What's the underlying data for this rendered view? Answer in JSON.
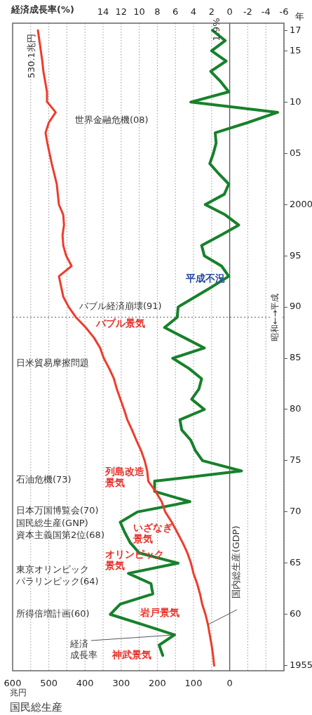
{
  "chart_data": {
    "type": "line",
    "orientation": "horizontal",
    "xlabel": "国民総生産",
    "x2label": "経済成長率(%)",
    "ylabel": "年",
    "x": [
      1955,
      1956,
      1957,
      1958,
      1959,
      1960,
      1961,
      1962,
      1963,
      1964,
      1965,
      1966,
      1967,
      1968,
      1969,
      1970,
      1971,
      1972,
      1973,
      1974,
      1975,
      1976,
      1977,
      1978,
      1979,
      1980,
      1981,
      1982,
      1983,
      1984,
      1985,
      1986,
      1987,
      1988,
      1989,
      1990,
      1991,
      1992,
      1993,
      1994,
      1995,
      1996,
      1997,
      1998,
      1999,
      2000,
      2001,
      2002,
      2003,
      2004,
      2005,
      2006,
      2007,
      2008,
      2009,
      2010,
      2011,
      2012,
      2013,
      2014,
      2015,
      2016,
      2017
    ],
    "ylim": [
      1954.5,
      2017.7
    ],
    "yticks": [
      1955,
      {
        "value": 1960,
        "label": "60"
      },
      {
        "value": 1965,
        "label": "65"
      },
      {
        "value": 1970,
        "label": "70"
      },
      {
        "value": 1975,
        "label": "75"
      },
      {
        "value": 1980,
        "label": "80"
      },
      {
        "value": 1985,
        "label": "85"
      },
      {
        "value": 1990,
        "label": "90"
      },
      {
        "value": 1995,
        "label": "95"
      },
      2000,
      {
        "value": 2005,
        "label": "05"
      },
      {
        "value": 2010,
        "label": "10"
      },
      {
        "value": 2015,
        "label": "15"
      },
      {
        "value": 2017,
        "label": "17"
      }
    ],
    "xlim": [
      600,
      -150
    ],
    "xticks": [
      0,
      100,
      200,
      300,
      400,
      500,
      600
    ],
    "x2lim": [
      24,
      -6
    ],
    "x2ticks": [
      -6,
      -4,
      -2,
      0,
      2,
      4,
      6,
      8,
      10,
      12,
      14,
      {
        "value": 16,
        "label": null
      },
      {
        "value": 18,
        "label": null
      },
      {
        "value": 20,
        "label": null
      },
      {
        "value": 22,
        "label": null
      }
    ],
    "grid": "x",
    "marker": "none",
    "line_style": "solid",
    "series": [
      {
        "name": "国内総生産(GDP)",
        "color": "#ef3b2c",
        "values": [
          43,
          46,
          50,
          55,
          60,
          67,
          76,
          82,
          90,
          100,
          107,
          117,
          130,
          145,
          160,
          178,
          188,
          205,
          225,
          228,
          235,
          245,
          258,
          270,
          283,
          292,
          302,
          312,
          320,
          333,
          348,
          358,
          375,
          398,
          425,
          445,
          460,
          466,
          472,
          437,
          452,
          460,
          462,
          458,
          460,
          472,
          475,
          478,
          485,
          492,
          498,
          504,
          509,
          500,
          481,
          504,
          505,
          510,
          515,
          518,
          522,
          526,
          530.1
        ]
      },
      {
        "name": "経済成長率",
        "color": "#17812b",
        "axis": "x2",
        "x": [
          1956,
          1957,
          1958,
          1959,
          1960,
          1961,
          1962,
          1963,
          1964,
          1965,
          1966,
          1967,
          1968,
          1969,
          1970,
          1971,
          1972,
          1973,
          1974,
          1975,
          1976,
          1977,
          1978,
          1979,
          1980,
          1981,
          1982,
          1983,
          1984,
          1985,
          1986,
          1987,
          1988,
          1989,
          1990,
          1991,
          1992,
          1993,
          1994,
          1995,
          1996,
          1997,
          1998,
          1999,
          2000,
          2001,
          2002,
          2003,
          2004,
          2005,
          2006,
          2007,
          2008,
          2009,
          2010,
          2011,
          2012,
          2013,
          2014,
          2015,
          2016,
          2017
        ],
        "values": [
          7.4,
          7.8,
          6.1,
          9.6,
          13.2,
          12.1,
          8.5,
          8.7,
          11.2,
          5.7,
          10.0,
          11.0,
          11.6,
          12.1,
          10.2,
          4.4,
          8.3,
          8.3,
          -1.3,
          3.0,
          3.8,
          4.3,
          5.3,
          5.5,
          2.8,
          4.2,
          3.4,
          3.1,
          4.5,
          6.3,
          2.8,
          5.0,
          7.2,
          5.8,
          5.7,
          3.8,
          1.9,
          0.1,
          0.9,
          2.8,
          3.1,
          1.0,
          -1.0,
          0.5,
          2.7,
          0.6,
          0.1,
          1.2,
          2.2,
          1.8,
          1.5,
          1.6,
          -2.0,
          -5.3,
          4.3,
          0.1,
          1.0,
          2.1,
          0.4,
          2.0,
          0.5,
          1.9
        ]
      }
    ],
    "ref_lines": [
      {
        "axis": "y",
        "value": 1989,
        "label": "昭和←→平成",
        "line_style": "dotted",
        "color": "#777777"
      }
    ],
    "annotations": [
      "530.1兆円",
      "1.9%",
      "世界金融危機(08)",
      "バブル経済崩壊(91)",
      "バブル景気",
      "平成不況",
      "日米貿易摩擦問題",
      "石油危機(73)",
      "列島改造景気",
      "日本万国博覧会(70)",
      "国民総生産(GNP)資本主義国第2位(68)",
      "いざなぎ景気",
      "東京オリンピックパラリンピック(64)",
      "オリンピック景気",
      "所得倍増計画(60)",
      "岩戸景気",
      "神武景気",
      "兆円"
    ]
  }
}
